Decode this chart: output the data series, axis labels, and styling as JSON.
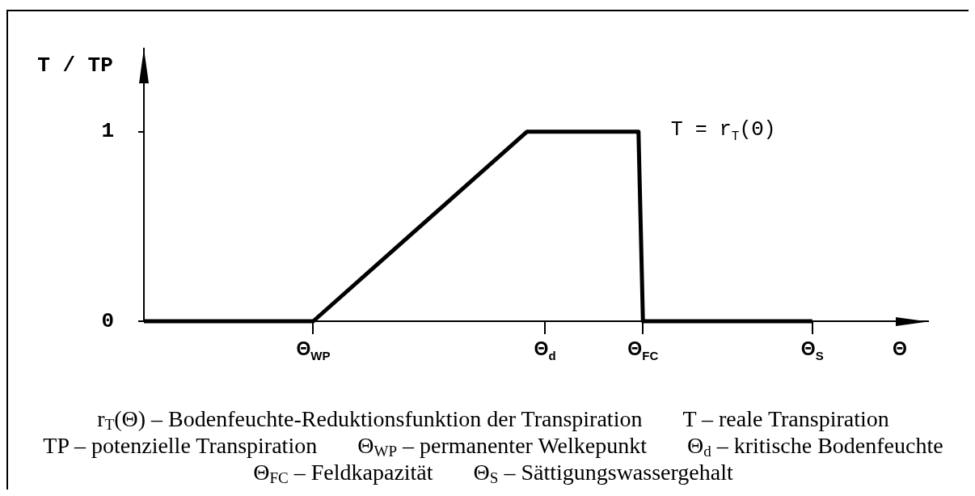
{
  "chart_data": {
    "type": "line",
    "ylabel": "T / TP",
    "xlabel": "Θ",
    "categories": [
      null,
      null,
      null,
      null,
      null,
      null,
      null,
      null,
      null,
      null,
      null,
      null,
      null,
      null,
      null,
      null,
      null,
      null,
      null,
      null,
      null,
      null,
      null,
      null,
      null,
      null,
      null,
      null,
      null,
      null,
      null,
      null,
      null,
      null,
      null,
      null,
      null,
      null,
      "Θ$_{WP}$",
      null,
      null,
      null,
      null,
      null,
      null,
      null,
      null,
      null,
      null,
      null,
      null,
      null,
      null,
      null,
      null,
      null,
      null,
      null,
      null,
      null,
      null,
      null,
      null,
      null,
      null,
      null,
      null,
      null,
      null,
      null,
      null,
      null,
      null,
      null,
      null,
      null,
      null,
      null,
      null,
      null,
      null,
      null,
      null,
      null,
      null,
      null,
      null,
      null,
      null,
      null,
      "Θ$_{d}$",
      null,
      null,
      null,
      null,
      null,
      null,
      null,
      null,
      null,
      null,
      null,
      null,
      null,
      null,
      null,
      null,
      null,
      null,
      null,
      null,
      null,
      "Θ$_{FC}$",
      null,
      null,
      null,
      null,
      null,
      null,
      null,
      null,
      null,
      null,
      null,
      null,
      null,
      null,
      null,
      null,
      null,
      null,
      null,
      null,
      null,
      null,
      null,
      null,
      null,
      null,
      null,
      null,
      null,
      null,
      null,
      null,
      null,
      null,
      null,
      null,
      null,
      "Θ$_{S}$",
      null,
      null,
      null,
      null,
      null,
      null,
      null,
      null,
      null,
      null,
      null,
      null,
      null,
      null,
      null,
      null,
      null,
      null,
      null,
      null,
      null,
      null,
      null,
      null,
      null,
      null
    ],
    "series": [
      {
        "name": "T = r$_{T}$(Θ)",
        "color": "#000000",
        "values": [
          0,
          0,
          0,
          0,
          0,
          0,
          0,
          0,
          0,
          0,
          0,
          0,
          0,
          0,
          0,
          0,
          0,
          0,
          0,
          0,
          0,
          0,
          0,
          0,
          0,
          0,
          0,
          0,
          0,
          0,
          0,
          0,
          0,
          0,
          0,
          0,
          0,
          0,
          0,
          null,
          null,
          null,
          null,
          null,
          null,
          null,
          null,
          null,
          null,
          null,
          null,
          null,
          null,
          null,
          null,
          null,
          null,
          null,
          null,
          null,
          null,
          null,
          null,
          null,
          null,
          null,
          null,
          null,
          null,
          null,
          null,
          null,
          null,
          null,
          null,
          null,
          null,
          null,
          null,
          null,
          null,
          null,
          null,
          null,
          null,
          null,
          1,
          1,
          1,
          1,
          1,
          1,
          1,
          1,
          1,
          1,
          1,
          1,
          1,
          1,
          1,
          1,
          1,
          1,
          1,
          1,
          1,
          1,
          1,
          1,
          1,
          1,
          0,
          0,
          0,
          0,
          0,
          0,
          0,
          0,
          0,
          0,
          0,
          0,
          0,
          0,
          0,
          0,
          0,
          0,
          0,
          0,
          0,
          0,
          0,
          0,
          0,
          0,
          0,
          0,
          0,
          0,
          0,
          0,
          0,
          0,
          0,
          0,
          0,
          0,
          0,
          null,
          null,
          null,
          null,
          null,
          null,
          null,
          null,
          null,
          null,
          null,
          null,
          null,
          null,
          null,
          null,
          null,
          null,
          null,
          null,
          null,
          null,
          null,
          null,
          null,
          null
        ]
      }
    ],
    "ylim": [
      0,
      1.44
    ],
    "yticks": [
      0,
      1
    ],
    "grid": false,
    "legend": false,
    "marker": "none",
    "line_style": "solid",
    "annotations": [
      "r$_{T}$(Θ) – Bodenfeuchte-Reduktionsfunktion der Transpiration",
      "T – reale Transpiration",
      "TP – potenzielle Transpiration",
      "Θ$_{WP}$ – permanenter Welkepunkt",
      "Θ$_{d}$ – kritische Bodenfeuchte",
      "Θ$_{FC}$ – Feldkapazität",
      "Θ$_{S}$ – Sättigungswassergehalt"
    ]
  }
}
